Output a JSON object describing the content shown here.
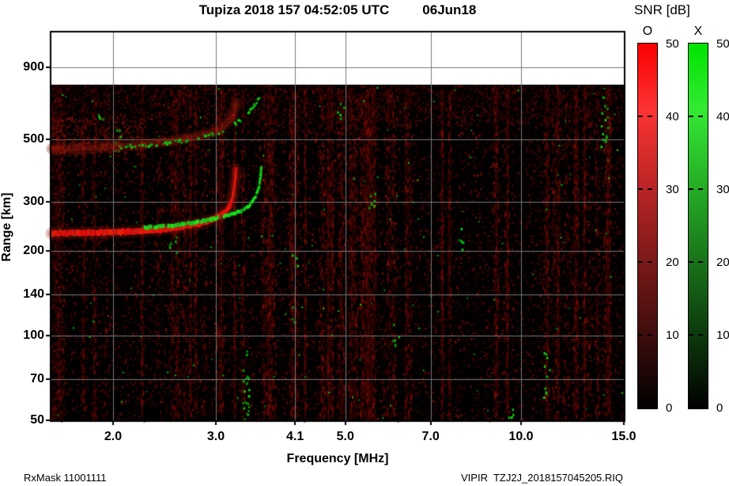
{
  "header": {
    "title_main": "Tupiza 2018 157 04:52:05 UTC",
    "title_date": "06Jun18"
  },
  "footer": {
    "left": "RxMask 11001111",
    "right": "VIPIR  TZJ2J_2018157045205.RIQ"
  },
  "axes": {
    "x_title": "Frequency [MHz]",
    "y_title": "Range [km]",
    "x_ticks": [
      {
        "value": 2.0,
        "label": "2.0"
      },
      {
        "value": 3.0,
        "label": "3.0"
      },
      {
        "value": 4.1,
        "label": "4.1"
      },
      {
        "value": 5.0,
        "label": "5.0"
      },
      {
        "value": 7.0,
        "label": "7.0"
      },
      {
        "value": 10.0,
        "label": "10.0"
      },
      {
        "value": 15.0,
        "label": "15.0"
      }
    ],
    "y_ticks": [
      {
        "value": 900,
        "label": "900"
      },
      {
        "value": 500,
        "label": "500"
      },
      {
        "value": 300,
        "label": "300"
      },
      {
        "value": 200,
        "label": "200"
      },
      {
        "value": 140,
        "label": "140"
      },
      {
        "value": 100,
        "label": "100"
      },
      {
        "value": 70,
        "label": "70"
      },
      {
        "value": 50,
        "label": "50"
      }
    ]
  },
  "colorbar": {
    "title": "SNR [dB]",
    "o_label": "O",
    "x_label": "X",
    "tick_labels": [
      "50",
      "40",
      "30",
      "20",
      "10",
      "0"
    ],
    "min": 0,
    "max": 50,
    "o_top_color": "#fb0000",
    "x_top_color": "#00e400",
    "bottom_color": "#000000"
  },
  "colors": {
    "o_mode": "#e00000",
    "x_mode": "#00d400",
    "grid": "#787878",
    "echo_background": "#000000"
  },
  "chart_data": {
    "type": "heatmap",
    "title": "Tupiza 2018 157 04:52:05 UTC 06Jun18",
    "xlabel": "Frequency [MHz]",
    "ylabel": "Range [km]",
    "x_scale": "log",
    "y_scale": "log",
    "x_ticks": [
      2.0,
      3.0,
      4.1,
      5.0,
      7.0,
      10.0,
      15.0
    ],
    "y_ticks": [
      50,
      70,
      100,
      140,
      200,
      300,
      500,
      900
    ],
    "x_range_mhz": [
      1.57,
      15.0
    ],
    "y_range_km": [
      50,
      1170
    ],
    "echo_region_top_km": 780,
    "legend_position": "right",
    "colorbar": {
      "title": "SNR [dB]",
      "min": 0,
      "max": 50,
      "ticks": [
        0,
        10,
        20,
        30,
        40,
        50
      ]
    },
    "traces": {
      "o_mode_first_hop": [
        [
          1.57,
          231
        ],
        [
          1.8,
          232
        ],
        [
          2.0,
          233
        ],
        [
          2.2,
          235
        ],
        [
          2.4,
          238
        ],
        [
          2.6,
          243
        ],
        [
          2.8,
          250
        ],
        [
          2.95,
          258
        ],
        [
          3.05,
          266
        ],
        [
          3.12,
          276
        ],
        [
          3.17,
          290
        ],
        [
          3.2,
          310
        ],
        [
          3.22,
          335
        ],
        [
          3.235,
          362
        ],
        [
          3.245,
          390
        ]
      ],
      "x_mode_first_hop": [
        [
          2.25,
          242
        ],
        [
          2.5,
          246
        ],
        [
          2.75,
          252
        ],
        [
          2.95,
          259
        ],
        [
          3.15,
          268
        ],
        [
          3.3,
          277
        ],
        [
          3.42,
          290
        ],
        [
          3.5,
          310
        ],
        [
          3.55,
          335
        ],
        [
          3.57,
          360
        ],
        [
          3.585,
          395
        ]
      ],
      "o_mode_second_hop": [
        [
          1.57,
          462
        ],
        [
          1.8,
          465
        ],
        [
          2.0,
          470
        ],
        [
          2.2,
          477
        ],
        [
          2.4,
          486
        ],
        [
          2.6,
          497
        ],
        [
          2.8,
          512
        ],
        [
          2.95,
          528
        ],
        [
          3.05,
          546
        ],
        [
          3.13,
          570
        ],
        [
          3.19,
          600
        ],
        [
          3.23,
          640
        ],
        [
          3.25,
          672
        ]
      ],
      "x_mode_second_hop": [
        [
          2.0,
          468
        ],
        [
          2.3,
          476
        ],
        [
          2.6,
          492
        ],
        [
          2.85,
          510
        ],
        [
          3.05,
          532
        ],
        [
          3.2,
          560
        ],
        [
          3.35,
          600
        ],
        [
          3.45,
          640
        ],
        [
          3.52,
          680
        ],
        [
          3.56,
          715
        ]
      ]
    }
  }
}
